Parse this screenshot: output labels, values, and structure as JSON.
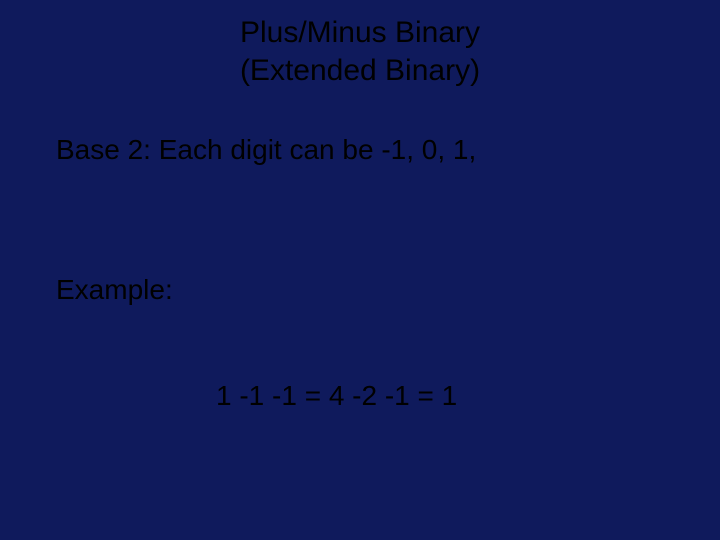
{
  "slide": {
    "background_color": "#0f1a5c",
    "text_color": "#000000",
    "font_family": "Comic Sans MS",
    "title": {
      "line1": "Plus/Minus Binary",
      "line2": "(Extended Binary)",
      "fontsize": 30
    },
    "body": {
      "line1": "Base 2: Each digit can be -1, 0, 1,",
      "line2": "Example:",
      "line3": "1 -1 -1 = 4 -2 -1 = 1",
      "fontsize": 28
    }
  }
}
